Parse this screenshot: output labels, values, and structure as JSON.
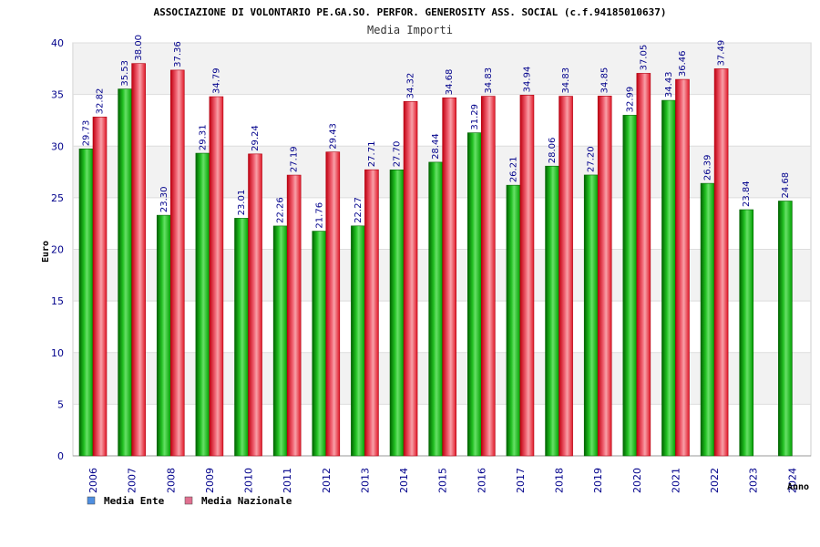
{
  "chart_data": {
    "type": "bar",
    "title": "ASSOCIAZIONE DI VOLONTARIO PE.GA.SO. PERFOR. GENEROSITY ASS. SOCIAL (c.f.94185010637)",
    "subtitle": "Media Importi",
    "ylabel": "Euro",
    "xlabel": "Anno",
    "ylim": [
      0,
      40
    ],
    "yticks": [
      0,
      5,
      10,
      15,
      20,
      25,
      30,
      35,
      40
    ],
    "categories": [
      "2006",
      "2007",
      "2008",
      "2009",
      "2010",
      "2011",
      "2012",
      "2013",
      "2014",
      "2015",
      "2016",
      "2017",
      "2018",
      "2019",
      "2020",
      "2021",
      "2022",
      "2023",
      "2024"
    ],
    "series": [
      {
        "name": "Media Ente",
        "color": "#00a000",
        "legend_color": "#4f8fe0",
        "values": [
          29.73,
          35.53,
          23.3,
          29.31,
          23.01,
          22.26,
          21.76,
          22.27,
          27.7,
          28.44,
          31.29,
          26.21,
          28.06,
          27.2,
          32.99,
          34.43,
          26.39,
          23.84,
          24.68
        ],
        "labels": [
          "29.73",
          "35.53",
          "23.30",
          "29.31",
          "23.01",
          "22.26",
          "21.76",
          "22.27",
          "27.70",
          "28.44",
          "31.29",
          "26.21",
          "28.06",
          "27.20",
          "32.99",
          "34.43",
          "26.39",
          "23.84",
          "24.68"
        ]
      },
      {
        "name": "Media Nazionale",
        "color": "#e8202a",
        "legend_color": "#e07090",
        "values": [
          32.82,
          38.0,
          37.36,
          34.79,
          29.24,
          27.19,
          29.43,
          27.71,
          34.32,
          34.68,
          34.83,
          34.94,
          34.83,
          34.85,
          37.05,
          36.46,
          37.49,
          null,
          null
        ],
        "labels": [
          "32.82",
          "38.00",
          "37.36",
          "34.79",
          "29.24",
          "27.19",
          "29.43",
          "27.71",
          "34.32",
          "34.68",
          "34.83",
          "34.94",
          "34.83",
          "34.85",
          "37.05",
          "36.46",
          "37.49",
          "",
          ""
        ]
      }
    ],
    "legend_position": "bottom-left",
    "grid": true
  }
}
